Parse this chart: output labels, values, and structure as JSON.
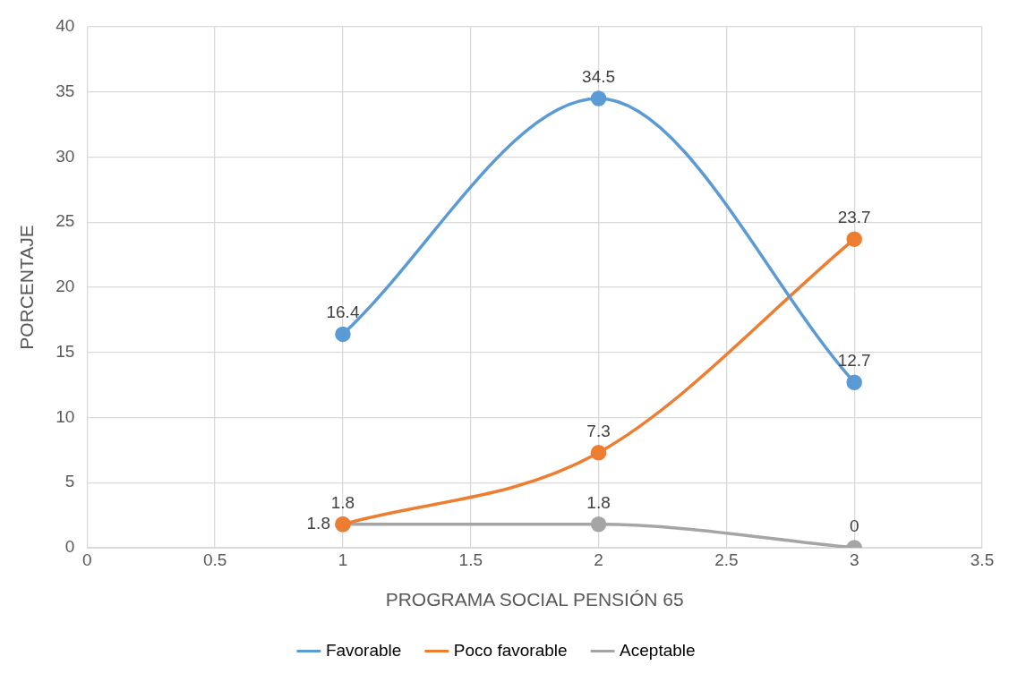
{
  "chart_data": {
    "type": "line",
    "xlabel": "PROGRAMA SOCIAL PENSIÓN 65",
    "ylabel": "PORCENTAJE",
    "x": [
      1,
      2,
      3
    ],
    "series": [
      {
        "name": "Favorable",
        "color": "#5b9bd5",
        "values": [
          16.4,
          34.5,
          12.7
        ]
      },
      {
        "name": "Poco favorable",
        "color": "#ed7d31",
        "values": [
          1.8,
          7.3,
          23.7
        ]
      },
      {
        "name": "Aceptable",
        "color": "#a5a5a5",
        "values": [
          1.8,
          1.8,
          0
        ]
      }
    ],
    "xlim": [
      0,
      3.5
    ],
    "xticks": [
      0,
      0.5,
      1,
      1.5,
      2,
      2.5,
      3,
      3.5
    ],
    "ylim": [
      0,
      40
    ],
    "yticks": [
      0,
      5,
      10,
      15,
      20,
      25,
      30,
      35,
      40
    ],
    "grid": true,
    "legend": "bottom",
    "marker": "circle",
    "line_style": "solid",
    "data_labels": true
  }
}
